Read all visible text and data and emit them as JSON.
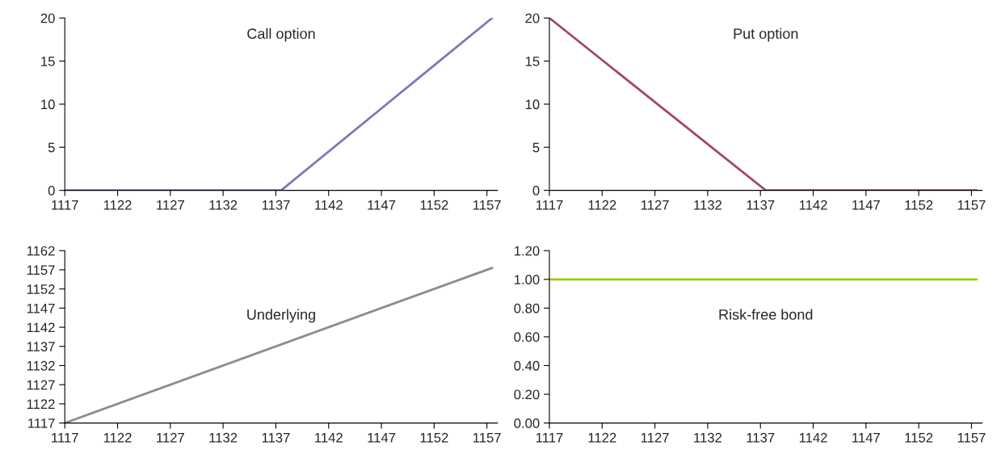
{
  "chart_data": [
    {
      "type": "line",
      "title": "Call option",
      "x": [
        1117,
        1137.5,
        1157.5
      ],
      "series": [
        {
          "color": "#7d78b8",
          "values": [
            0,
            0,
            20
          ]
        }
      ],
      "xlim": [
        1117,
        1158
      ],
      "xticks": [
        1117,
        1122,
        1127,
        1132,
        1137,
        1142,
        1147,
        1152,
        1157
      ],
      "ylim": [
        0,
        20
      ],
      "yticks": [
        0,
        5,
        10,
        15,
        20
      ],
      "grid": false,
      "legend": false
    },
    {
      "type": "line",
      "title": "Put option",
      "x": [
        1117,
        1137.5,
        1157.5
      ],
      "series": [
        {
          "color": "#a3476f",
          "values": [
            20,
            0,
            0
          ]
        }
      ],
      "xlim": [
        1117,
        1158
      ],
      "xticks": [
        1117,
        1122,
        1127,
        1132,
        1137,
        1142,
        1147,
        1152,
        1157
      ],
      "ylim": [
        0,
        20
      ],
      "yticks": [
        0,
        5,
        10,
        15,
        20
      ],
      "grid": false,
      "legend": false
    },
    {
      "type": "line",
      "title": "Underlying",
      "x": [
        1117,
        1157.5
      ],
      "series": [
        {
          "color": "#8c8c8c",
          "values": [
            1117,
            1157.5
          ]
        }
      ],
      "xlim": [
        1117,
        1158
      ],
      "xticks": [
        1117,
        1122,
        1127,
        1132,
        1137,
        1142,
        1147,
        1152,
        1157
      ],
      "ylim": [
        1117,
        1162
      ],
      "yticks": [
        1117,
        1122,
        1127,
        1132,
        1137,
        1142,
        1147,
        1152,
        1157,
        1162
      ],
      "grid": false,
      "legend": false
    },
    {
      "type": "line",
      "title": "Risk-free bond",
      "x": [
        1117,
        1157.5
      ],
      "series": [
        {
          "color": "#99cc00",
          "values": [
            1,
            1
          ]
        }
      ],
      "xlim": [
        1117,
        1158
      ],
      "xticks": [
        1117,
        1122,
        1127,
        1132,
        1137,
        1142,
        1147,
        1152,
        1157
      ],
      "ylim": [
        0,
        1.2
      ],
      "yticks": [
        {
          "value": 0,
          "label": "0.00"
        },
        {
          "value": 0.2,
          "label": "0.20"
        },
        {
          "value": 0.4,
          "label": "0.40"
        },
        {
          "value": 0.6,
          "label": "0.60"
        },
        {
          "value": 0.8,
          "label": "0.80"
        },
        {
          "value": 1,
          "label": "1.00"
        },
        {
          "value": 1.2,
          "label": "1.20"
        }
      ],
      "grid": false,
      "legend": false
    }
  ]
}
